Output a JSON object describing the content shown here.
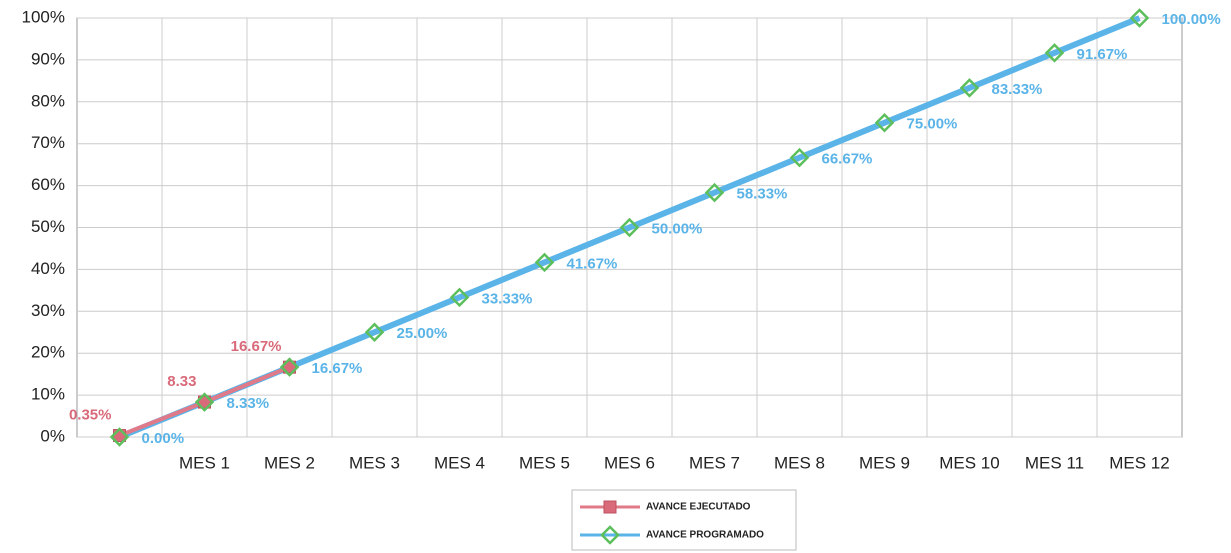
{
  "chart_data": {
    "type": "line",
    "categories": [
      null,
      "MES 1",
      "MES 2",
      "MES 3",
      "MES 4",
      "MES 5",
      "MES 6",
      "MES 7",
      "MES 8",
      "MES 9",
      "MES 10",
      "MES 11",
      "MES 12"
    ],
    "series": [
      {
        "name": "AVANCE EJECUTADO",
        "color": "#e07a88",
        "marker_color": "#d96a7a",
        "values": [
          0.35,
          8.33,
          16.67,
          null,
          null,
          null,
          null,
          null,
          null,
          null,
          null,
          null,
          null
        ],
        "value_labels": [
          "0.35%",
          "8.33",
          "16.67%",
          null,
          null,
          null,
          null,
          null,
          null,
          null,
          null,
          null,
          null
        ]
      },
      {
        "name": "AVANCE PROGRAMADO",
        "color": "#5ab4e8",
        "marker_color": "#5cbf5c",
        "values": [
          0,
          8.33,
          16.67,
          25,
          33.33,
          41.67,
          50,
          58.33,
          66.67,
          75,
          83.33,
          91.67,
          100
        ],
        "value_labels": [
          "0.00%",
          "8.33%",
          "16.67%",
          "25.00%",
          "33.33%",
          "41.67%",
          "50.00%",
          "58.33%",
          "66.67%",
          "75.00%",
          "83.33%",
          "91.67%",
          "100.00%"
        ]
      }
    ],
    "ylim": [
      0,
      100
    ],
    "yticks": [
      {
        "value": 0,
        "label": "0%"
      },
      {
        "value": 10,
        "label": "10%"
      },
      {
        "value": 20,
        "label": "20%"
      },
      {
        "value": 30,
        "label": "30%"
      },
      {
        "value": 40,
        "label": "40%"
      },
      {
        "value": 50,
        "label": "50%"
      },
      {
        "value": 60,
        "label": "60%"
      },
      {
        "value": 70,
        "label": "70%"
      },
      {
        "value": 80,
        "label": "80%"
      },
      {
        "value": 90,
        "label": "90%"
      },
      {
        "value": 100,
        "label": "100%"
      }
    ],
    "grid": true,
    "legend": "bottom"
  }
}
